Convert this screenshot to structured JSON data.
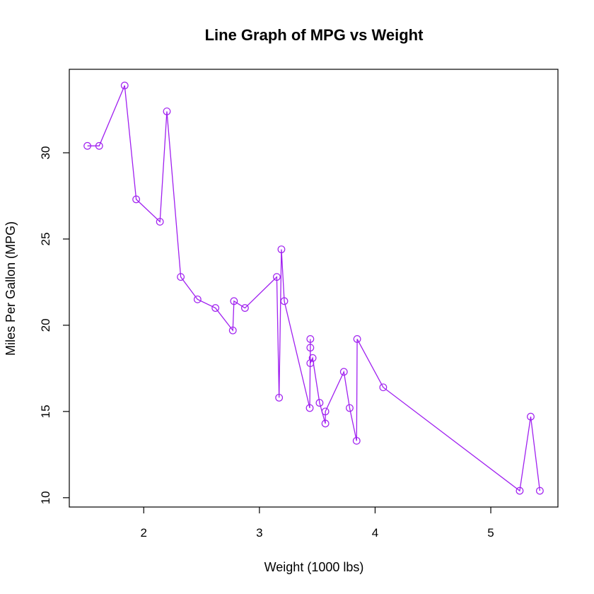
{
  "chart_data": {
    "type": "line",
    "title": "Line Graph of MPG vs Weight",
    "xlabel": "Weight (1000 lbs)",
    "ylabel": "Miles Per Gallon (MPG)",
    "xlim": [
      1.513,
      5.424
    ],
    "ylim": [
      10.4,
      33.9
    ],
    "xticks": [
      2,
      3,
      4,
      5
    ],
    "yticks": [
      10,
      15,
      20,
      25,
      30
    ],
    "xtick_labels": [
      "2",
      "3",
      "4",
      "5"
    ],
    "ytick_labels": [
      "10",
      "15",
      "20",
      "25",
      "30"
    ],
    "grid": false,
    "color": "#A020F0",
    "marker": "open-circle",
    "series": [
      {
        "name": "mpg",
        "x": [
          1.513,
          1.615,
          1.835,
          1.935,
          2.14,
          2.2,
          2.32,
          2.465,
          2.62,
          2.77,
          2.78,
          2.875,
          3.15,
          3.17,
          3.19,
          3.215,
          3.435,
          3.44,
          3.44,
          3.44,
          3.46,
          3.52,
          3.57,
          3.57,
          3.73,
          3.78,
          3.84,
          3.845,
          4.07,
          5.25,
          5.345,
          5.424
        ],
        "y": [
          30.4,
          30.4,
          33.9,
          27.3,
          26.0,
          32.4,
          22.8,
          21.5,
          21.0,
          19.7,
          21.4,
          21.0,
          22.8,
          15.8,
          24.4,
          21.4,
          15.2,
          18.7,
          19.2,
          17.8,
          18.1,
          15.5,
          14.3,
          15.0,
          17.3,
          15.2,
          13.3,
          19.2,
          16.4,
          10.4,
          14.7,
          10.4
        ]
      }
    ]
  }
}
